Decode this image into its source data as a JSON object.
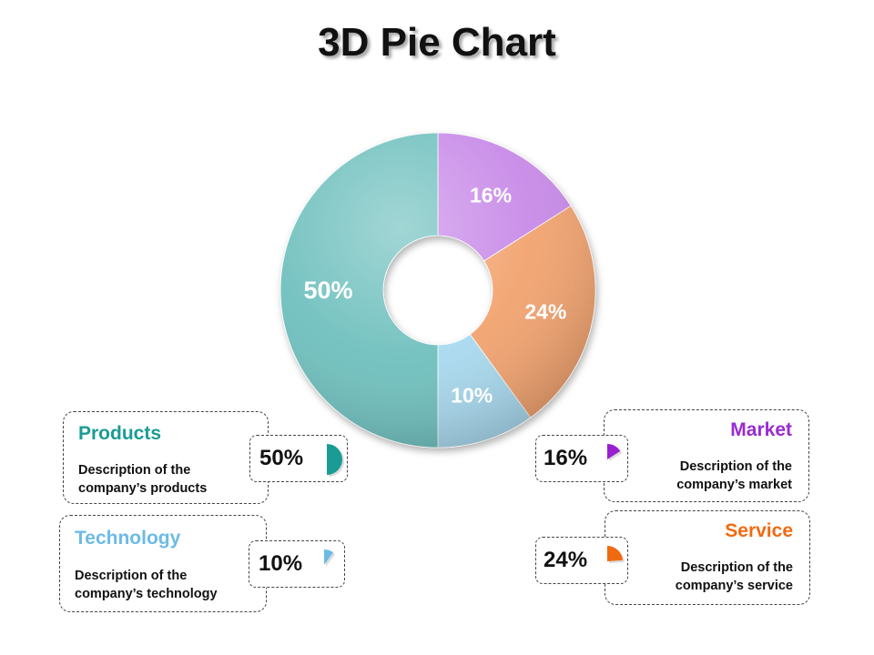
{
  "title": "3D Pie Chart",
  "chart_data": {
    "type": "pie",
    "donut": true,
    "categories": [
      "Market",
      "Service",
      "Technology",
      "Products"
    ],
    "values": [
      16,
      24,
      10,
      50
    ],
    "labels": [
      "16%",
      "24%",
      "10%",
      "50%"
    ],
    "colors": [
      "#c88ae8",
      "#f2a36f",
      "#a9d9ef",
      "#6fc0be"
    ]
  },
  "cards": [
    {
      "key": "products",
      "title": "Products",
      "color": "#1a9c94",
      "desc1": "Description of the",
      "desc2": "company’s products",
      "pct": "50%",
      "icon_color": "#1a9c94",
      "icon_fraction": 0.5
    },
    {
      "key": "technology",
      "title": "Technology",
      "color": "#6cbbe6",
      "desc1": "Description of the",
      "desc2": "company’s technology",
      "pct": "10%",
      "icon_color": "#6cbbe6",
      "icon_fraction": 0.1
    },
    {
      "key": "market",
      "title": "Market",
      "color": "#9a2bd1",
      "desc1": "Description of the",
      "desc2": "company’s market",
      "pct": "16%",
      "icon_color": "#9a1fd0",
      "icon_fraction": 0.16
    },
    {
      "key": "service",
      "title": "Service",
      "color": "#f06a12",
      "desc1": "Description of the",
      "desc2": "company’s service",
      "pct": "24%",
      "icon_color": "#f06a12",
      "icon_fraction": 0.24
    }
  ]
}
